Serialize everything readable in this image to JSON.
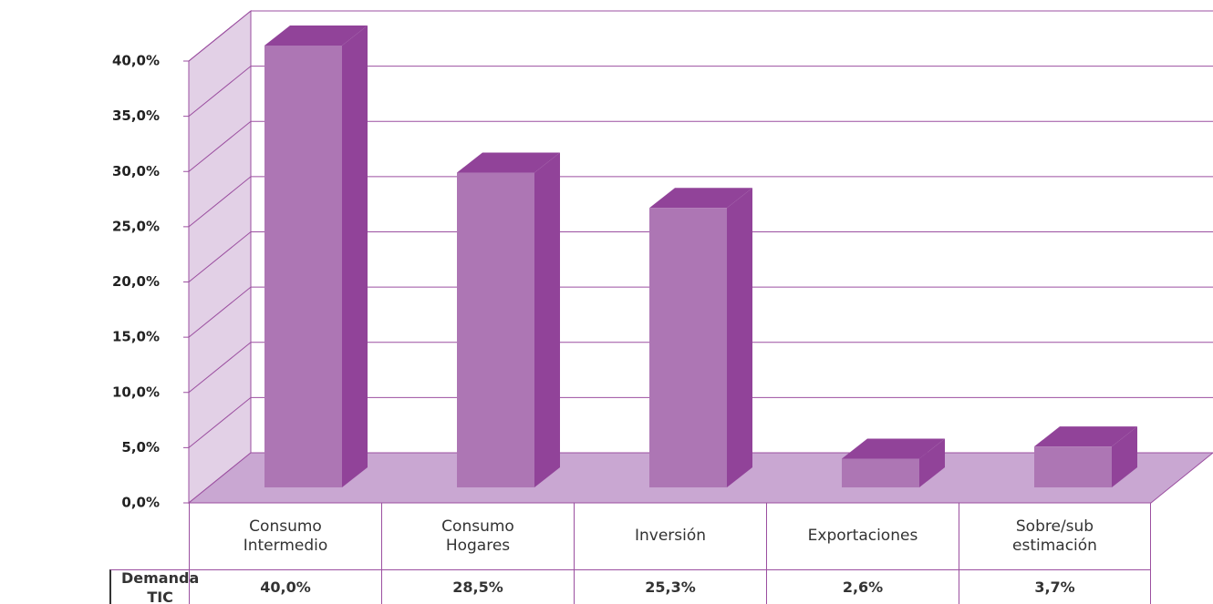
{
  "chart_data": {
    "type": "bar3d",
    "categories": [
      "Consumo Intermedio",
      "Consumo Hogares",
      "Inversión",
      "Exportaciones",
      "Sobre/sub estimación"
    ],
    "series": [
      {
        "name": "Demanda TIC",
        "color": "#ad76b4",
        "values": [
          40.0,
          28.5,
          25.3,
          2.6,
          3.7
        ],
        "value_labels": [
          "40,0%",
          "28,5%",
          "25,3%",
          "2,6%",
          "3,7%"
        ]
      }
    ],
    "ylim": [
      0,
      40
    ],
    "yticks": [
      {
        "value": 0,
        "label": "0,0%"
      },
      {
        "value": 5,
        "label": "5,0%"
      },
      {
        "value": 10,
        "label": "10,0%"
      },
      {
        "value": 15,
        "label": "15,0%"
      },
      {
        "value": 20,
        "label": "20,0%"
      },
      {
        "value": 25,
        "label": "25,0%"
      },
      {
        "value": 30,
        "label": "30,0%"
      },
      {
        "value": 35,
        "label": "35,0%"
      },
      {
        "value": 40,
        "label": "40,0%"
      }
    ],
    "grid": true
  }
}
